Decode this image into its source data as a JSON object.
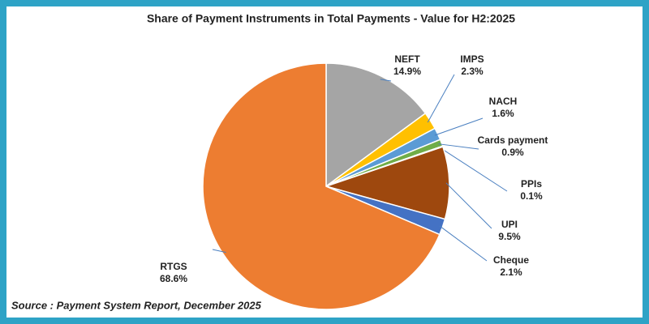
{
  "chart_data": {
    "type": "pie",
    "title": "Share of Payment Instruments in Total Payments - Value for H2:2025",
    "categories": [
      "NEFT",
      "IMPS",
      "NACH",
      "Cards payment",
      "PPIs",
      "UPI",
      "Cheque",
      "RTGS"
    ],
    "values": [
      14.9,
      2.3,
      1.6,
      0.9,
      0.1,
      9.5,
      2.1,
      68.6
    ],
    "value_labels": [
      "14.9%",
      "2.3%",
      "1.6%",
      "0.9%",
      "0.1%",
      "9.5%",
      "2.1%",
      "68.6%"
    ],
    "colors": [
      "#a5a5a5",
      "#ffc000",
      "#5b9bd5",
      "#70ad47",
      "#264478",
      "#9e480e",
      "#4472c4",
      "#ed7d31"
    ],
    "source": "Source : Payment System Report, December 2025"
  }
}
